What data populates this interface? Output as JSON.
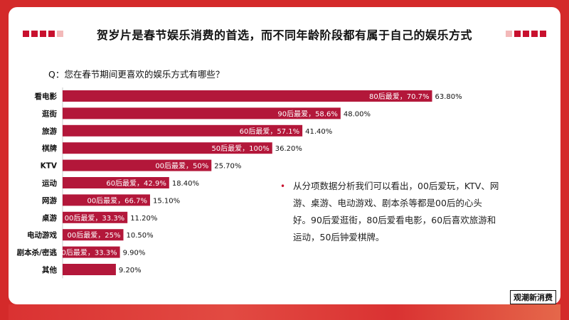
{
  "title": "贺岁片是春节娱乐消费的首选，而不同年龄阶段都有属于自己的娱乐方式",
  "question": "Q：您在春节期间更喜欢的娱乐方式有哪些？",
  "bullet_text": "从分项数据分析我们可以看出，00后爱玩，KTV、网游、桌游、电动游戏、剧本杀等都是00后的心头好。90后爱逛街，80后爱看电影，60后喜欢旅游和运动，50后钟爱棋牌。",
  "logo_text": "观潮新消费",
  "colors": {
    "bar": "#b3173a",
    "accent": "#c8102e",
    "frame": "#d42a2a"
  },
  "chart_data": {
    "type": "bar",
    "orientation": "horizontal",
    "categories": [
      "看电影",
      "逛街",
      "旅游",
      "棋牌",
      "KTV",
      "运动",
      "网游",
      "桌游",
      "电动游戏",
      "剧本杀/密逃",
      "其他"
    ],
    "values": [
      63.8,
      48.0,
      41.4,
      36.2,
      25.7,
      18.4,
      15.1,
      11.2,
      10.5,
      9.9,
      9.2
    ],
    "value_labels": [
      "63.80%",
      "48.00%",
      "41.40%",
      "36.20%",
      "25.70%",
      "18.40%",
      "15.10%",
      "11.20%",
      "10.50%",
      "9.90%",
      "9.20%"
    ],
    "annotations": [
      "80后最爱，70.7%",
      "90后最爱，58.6%",
      "60后最爱，57.1%",
      "50后最爱，100%",
      "00后最爱，50%",
      "60后最爱，42.9%",
      "00后最爱，66.7%",
      "00后最爱，33.3%",
      "00后最爱，25%",
      "00后最爱，33.3%",
      ""
    ],
    "xlim": [
      0,
      70
    ],
    "grid": false,
    "legend": "none"
  }
}
